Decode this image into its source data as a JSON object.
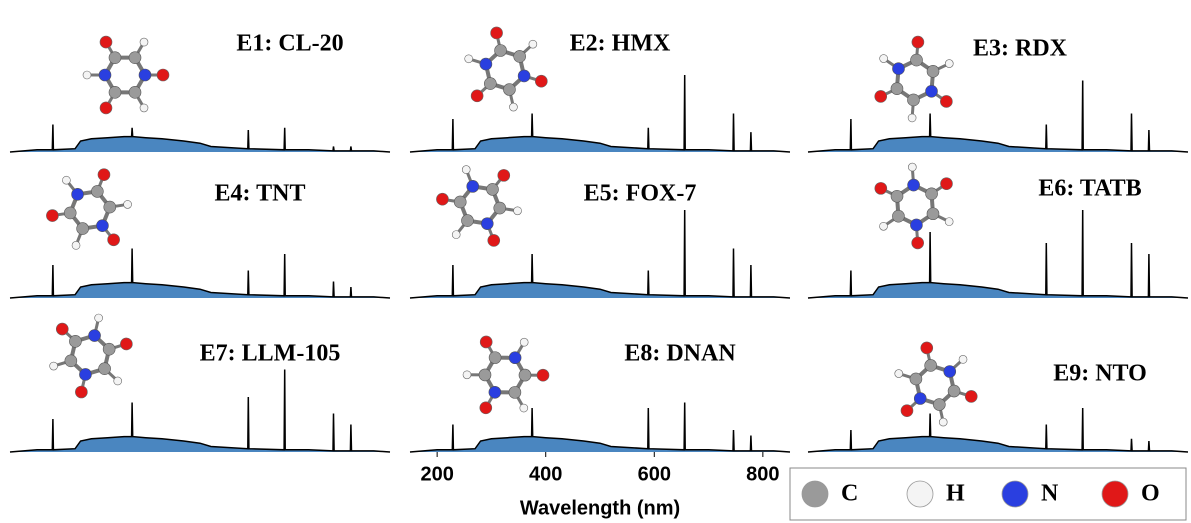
{
  "chart_data": [
    {
      "type": "area",
      "title": "E1: CL-20",
      "color": "#4a86c0",
      "xlim": [
        150,
        850
      ],
      "ylim": [
        0,
        100
      ],
      "x": [
        150,
        200,
        228,
        229,
        230,
        270,
        280,
        300,
        330,
        360,
        374,
        375,
        376,
        400,
        430,
        450,
        470,
        500,
        520,
        588,
        589,
        590,
        655,
        656,
        657,
        700,
        745,
        746,
        747,
        777,
        778,
        779,
        820,
        850
      ],
      "values": [
        0,
        2,
        2,
        25,
        2,
        3,
        10,
        12,
        13,
        14,
        14,
        22,
        14,
        13,
        12,
        11,
        10,
        8,
        5,
        3,
        20,
        3,
        2,
        22,
        2,
        2,
        1,
        5,
        1,
        1,
        5,
        1,
        1,
        0
      ]
    },
    {
      "type": "area",
      "title": "E2: HMX",
      "color": "#4a86c0",
      "xlim": [
        150,
        850
      ],
      "ylim": [
        0,
        100
      ],
      "x": [
        150,
        200,
        228,
        229,
        230,
        270,
        280,
        300,
        330,
        360,
        374,
        375,
        376,
        400,
        430,
        450,
        470,
        500,
        520,
        588,
        589,
        590,
        655,
        656,
        657,
        700,
        745,
        746,
        747,
        777,
        778,
        779,
        820,
        850
      ],
      "values": [
        0,
        2,
        2,
        30,
        2,
        3,
        10,
        12,
        13,
        14,
        14,
        35,
        14,
        13,
        12,
        11,
        10,
        8,
        5,
        3,
        22,
        3,
        2,
        70,
        2,
        2,
        1,
        35,
        1,
        1,
        18,
        1,
        1,
        0
      ]
    },
    {
      "type": "area",
      "title": "E3: RDX",
      "color": "#4a86c0",
      "xlim": [
        150,
        850
      ],
      "ylim": [
        0,
        100
      ],
      "x": [
        150,
        200,
        228,
        229,
        230,
        270,
        280,
        300,
        330,
        360,
        374,
        375,
        376,
        400,
        430,
        450,
        470,
        500,
        520,
        588,
        589,
        590,
        655,
        656,
        657,
        700,
        745,
        746,
        747,
        777,
        778,
        779,
        820,
        850
      ],
      "values": [
        0,
        2,
        2,
        30,
        2,
        3,
        10,
        12,
        13,
        14,
        14,
        35,
        14,
        13,
        12,
        11,
        10,
        8,
        5,
        3,
        25,
        3,
        2,
        65,
        2,
        2,
        1,
        35,
        1,
        1,
        20,
        1,
        1,
        0
      ]
    },
    {
      "type": "area",
      "title": "E4: TNT",
      "color": "#4a86c0",
      "xlim": [
        150,
        850
      ],
      "ylim": [
        0,
        100
      ],
      "x": [
        150,
        200,
        228,
        229,
        230,
        270,
        280,
        300,
        330,
        360,
        374,
        375,
        376,
        400,
        430,
        450,
        470,
        500,
        520,
        588,
        589,
        590,
        655,
        656,
        657,
        700,
        745,
        746,
        747,
        777,
        778,
        779,
        820,
        850
      ],
      "values": [
        0,
        2,
        2,
        30,
        2,
        3,
        10,
        12,
        13,
        14,
        14,
        45,
        14,
        13,
        12,
        11,
        10,
        8,
        5,
        3,
        25,
        3,
        2,
        40,
        2,
        2,
        1,
        15,
        1,
        1,
        10,
        1,
        1,
        0
      ]
    },
    {
      "type": "area",
      "title": "E5: FOX-7",
      "color": "#4a86c0",
      "xlim": [
        150,
        850
      ],
      "ylim": [
        0,
        100
      ],
      "x": [
        150,
        200,
        228,
        229,
        230,
        270,
        280,
        300,
        330,
        360,
        374,
        375,
        376,
        400,
        430,
        450,
        470,
        500,
        520,
        588,
        589,
        590,
        655,
        656,
        657,
        700,
        745,
        746,
        747,
        777,
        778,
        779,
        820,
        850
      ],
      "values": [
        0,
        2,
        2,
        30,
        2,
        3,
        10,
        12,
        13,
        14,
        14,
        40,
        14,
        13,
        12,
        11,
        10,
        8,
        5,
        3,
        25,
        3,
        2,
        80,
        2,
        2,
        1,
        45,
        1,
        1,
        30,
        1,
        1,
        0
      ]
    },
    {
      "type": "area",
      "title": "E6: TATB",
      "color": "#4a86c0",
      "xlim": [
        150,
        850
      ],
      "ylim": [
        0,
        100
      ],
      "x": [
        150,
        200,
        228,
        229,
        230,
        270,
        280,
        300,
        330,
        360,
        374,
        375,
        376,
        400,
        430,
        450,
        470,
        500,
        520,
        588,
        589,
        590,
        655,
        656,
        657,
        700,
        745,
        746,
        747,
        777,
        778,
        779,
        820,
        850
      ],
      "values": [
        0,
        2,
        2,
        25,
        2,
        3,
        10,
        12,
        13,
        14,
        14,
        60,
        14,
        13,
        12,
        11,
        10,
        8,
        5,
        3,
        50,
        3,
        2,
        80,
        2,
        2,
        1,
        50,
        1,
        1,
        40,
        1,
        1,
        0
      ]
    },
    {
      "type": "area",
      "title": "E7: LLM-105",
      "color": "#4a86c0",
      "xlim": [
        150,
        850
      ],
      "ylim": [
        0,
        100
      ],
      "x": [
        150,
        200,
        228,
        229,
        230,
        270,
        280,
        300,
        330,
        360,
        374,
        375,
        376,
        400,
        430,
        450,
        470,
        500,
        520,
        588,
        589,
        590,
        655,
        656,
        657,
        700,
        745,
        746,
        747,
        777,
        778,
        779,
        820,
        850
      ],
      "values": [
        0,
        2,
        2,
        30,
        2,
        3,
        10,
        12,
        13,
        14,
        14,
        45,
        14,
        13,
        12,
        11,
        10,
        8,
        5,
        3,
        50,
        3,
        2,
        75,
        2,
        2,
        1,
        35,
        1,
        1,
        25,
        1,
        1,
        0
      ]
    },
    {
      "type": "area",
      "title": "E8: DNAN",
      "color": "#4a86c0",
      "xlim": [
        150,
        850
      ],
      "ylim": [
        0,
        100
      ],
      "xticks": [
        200,
        400,
        600,
        800
      ],
      "xlabel": "Wavelength (nm)",
      "x": [
        150,
        200,
        228,
        229,
        230,
        270,
        280,
        300,
        330,
        360,
        374,
        375,
        376,
        400,
        430,
        450,
        470,
        500,
        520,
        588,
        589,
        590,
        655,
        656,
        657,
        700,
        745,
        746,
        747,
        777,
        778,
        779,
        820,
        850
      ],
      "values": [
        0,
        2,
        2,
        25,
        2,
        3,
        10,
        12,
        13,
        14,
        14,
        40,
        14,
        13,
        12,
        11,
        10,
        8,
        5,
        3,
        40,
        3,
        2,
        45,
        2,
        2,
        1,
        20,
        1,
        1,
        15,
        1,
        1,
        0
      ]
    },
    {
      "type": "area",
      "title": "E9: NTO",
      "color": "#4a86c0",
      "xlim": [
        150,
        850
      ],
      "ylim": [
        0,
        100
      ],
      "x": [
        150,
        200,
        228,
        229,
        230,
        270,
        280,
        300,
        330,
        360,
        374,
        375,
        376,
        400,
        430,
        450,
        470,
        500,
        520,
        588,
        589,
        590,
        655,
        656,
        657,
        700,
        745,
        746,
        747,
        777,
        778,
        779,
        820,
        850
      ],
      "values": [
        0,
        2,
        2,
        20,
        2,
        3,
        10,
        12,
        13,
        14,
        14,
        35,
        14,
        13,
        12,
        11,
        10,
        8,
        5,
        3,
        25,
        3,
        2,
        40,
        2,
        2,
        1,
        12,
        1,
        1,
        10,
        1,
        1,
        0
      ]
    }
  ],
  "legend": {
    "items": [
      {
        "name": "C",
        "color": "#9a9a9a"
      },
      {
        "name": "H",
        "color": "#f4f4f4"
      },
      {
        "name": "N",
        "color": "#2a3fe0"
      },
      {
        "name": "O",
        "color": "#e01818"
      }
    ]
  }
}
